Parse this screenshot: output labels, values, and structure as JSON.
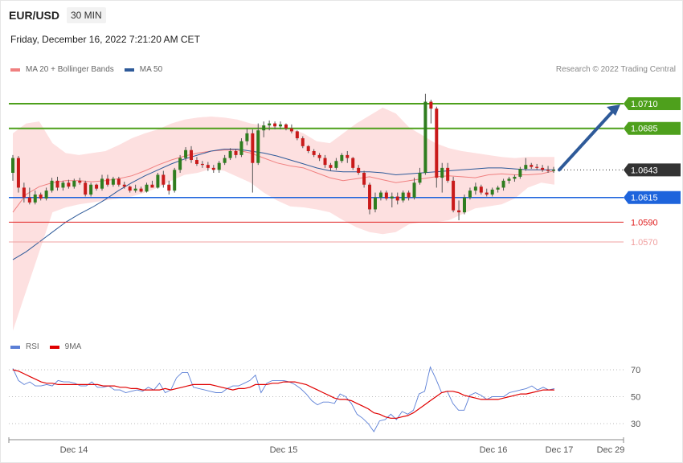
{
  "header": {
    "pair": "EUR/USD",
    "timeframe": "30 MIN",
    "datetime": "Friday, December 16, 2022 7:21:20 AM CET",
    "credit": "Research © 2022 Trading Central"
  },
  "legends": {
    "main": [
      {
        "label": "MA 20 + Bollinger Bands",
        "color": "#f08080"
      },
      {
        "label": "MA 50",
        "color": "#2e5a99"
      }
    ],
    "rsi": [
      {
        "label": "RSI",
        "color": "#5b7fd6"
      },
      {
        "label": "9MA",
        "color": "#e00000"
      }
    ]
  },
  "chart_data": [
    {
      "type": "candlestick",
      "title": "EUR/USD",
      "x_ticks": [
        "Dec 14",
        "Dec 15",
        "Dec 16",
        "Dec 17",
        "Dec 29"
      ],
      "price_levels": [
        {
          "value": 1.071,
          "label": "1.0710",
          "kind": "resistance",
          "color": "#4ea01c"
        },
        {
          "value": 1.0685,
          "label": "1.0685",
          "kind": "resistance",
          "color": "#4ea01c"
        },
        {
          "value": 1.0643,
          "label": "1.0643",
          "kind": "current",
          "color": "#333333"
        },
        {
          "value": 1.0615,
          "label": "1.0615",
          "kind": "pivot",
          "color": "#1e64dc"
        },
        {
          "value": 1.059,
          "label": "1.0590",
          "kind": "support",
          "color": "#e02020"
        },
        {
          "value": 1.057,
          "label": "1.0570",
          "kind": "support",
          "color": "#f0a0a0"
        }
      ],
      "projection": {
        "from": 1.0643,
        "to": 1.071,
        "direction": "up"
      },
      "candles_ohlc": [
        [
          1.064,
          1.0658,
          1.0632,
          1.0655
        ],
        [
          1.0655,
          1.0657,
          1.062,
          1.0625
        ],
        [
          1.0625,
          1.063,
          1.061,
          1.0615
        ],
        [
          1.0615,
          1.0625,
          1.0608,
          1.061
        ],
        [
          1.061,
          1.0622,
          1.0608,
          1.0618
        ],
        [
          1.0618,
          1.062,
          1.0612,
          1.0614
        ],
        [
          1.0614,
          1.0625,
          1.0612,
          1.0622
        ],
        [
          1.0622,
          1.0635,
          1.062,
          1.0632
        ],
        [
          1.0632,
          1.0636,
          1.0622,
          1.0625
        ],
        [
          1.0625,
          1.0632,
          1.0622,
          1.063
        ],
        [
          1.063,
          1.0633,
          1.0624,
          1.0626
        ],
        [
          1.0626,
          1.0634,
          1.0624,
          1.0632
        ],
        [
          1.0632,
          1.0635,
          1.0628,
          1.063
        ],
        [
          1.063,
          1.0632,
          1.0616,
          1.0618
        ],
        [
          1.0618,
          1.063,
          1.0616,
          1.0628
        ],
        [
          1.0628,
          1.0629,
          1.0622,
          1.0624
        ],
        [
          1.0624,
          1.0638,
          1.0622,
          1.0634
        ],
        [
          1.0634,
          1.0638,
          1.0626,
          1.0628
        ],
        [
          1.0628,
          1.0636,
          1.0626,
          1.0634
        ],
        [
          1.0634,
          1.0636,
          1.0626,
          1.0628
        ],
        [
          1.0628,
          1.0631,
          1.0624,
          1.0626
        ],
        [
          1.0626,
          1.0627,
          1.062,
          1.0622
        ],
        [
          1.0622,
          1.0628,
          1.062,
          1.0624
        ],
        [
          1.0624,
          1.0626,
          1.062,
          1.0621
        ],
        [
          1.0621,
          1.063,
          1.062,
          1.0628
        ],
        [
          1.0628,
          1.0632,
          1.0626,
          1.0625
        ],
        [
          1.0625,
          1.064,
          1.0624,
          1.0638
        ],
        [
          1.0638,
          1.0642,
          1.0625,
          1.0628
        ],
        [
          1.0628,
          1.0632,
          1.0618,
          1.0622
        ],
        [
          1.0622,
          1.0645,
          1.062,
          1.0643
        ],
        [
          1.0643,
          1.0658,
          1.064,
          1.0655
        ],
        [
          1.0655,
          1.0666,
          1.0652,
          1.0663
        ],
        [
          1.0663,
          1.0667,
          1.065,
          1.0653
        ],
        [
          1.0653,
          1.0656,
          1.0647,
          1.0649
        ],
        [
          1.0649,
          1.0652,
          1.0645,
          1.0648
        ],
        [
          1.0648,
          1.0651,
          1.0642,
          1.0645
        ],
        [
          1.0645,
          1.0648,
          1.064,
          1.0643
        ],
        [
          1.0643,
          1.0652,
          1.064,
          1.065
        ],
        [
          1.065,
          1.0658,
          1.0648,
          1.0655
        ],
        [
          1.0655,
          1.0665,
          1.0653,
          1.0662
        ],
        [
          1.0662,
          1.0664,
          1.0655,
          1.0658
        ],
        [
          1.0658,
          1.0675,
          1.0656,
          1.0672
        ],
        [
          1.0672,
          1.0685,
          1.0668,
          1.068
        ],
        [
          1.068,
          1.0684,
          1.062,
          1.065
        ],
        [
          1.065,
          1.069,
          1.0648,
          1.0683
        ],
        [
          1.0683,
          1.0692,
          1.0676,
          1.0688
        ],
        [
          1.0688,
          1.0693,
          1.0683,
          1.069
        ],
        [
          1.069,
          1.0692,
          1.0684,
          1.0687
        ],
        [
          1.0687,
          1.0692,
          1.0684,
          1.0689
        ],
        [
          1.0689,
          1.069,
          1.0683,
          1.0685
        ],
        [
          1.0685,
          1.0689,
          1.068,
          1.0682
        ],
        [
          1.0682,
          1.0683,
          1.0673,
          1.0675
        ],
        [
          1.0675,
          1.0677,
          1.0665,
          1.0667
        ],
        [
          1.0667,
          1.0668,
          1.066,
          1.0662
        ],
        [
          1.0662,
          1.0664,
          1.0656,
          1.0658
        ],
        [
          1.0658,
          1.066,
          1.0652,
          1.0655
        ],
        [
          1.0655,
          1.0658,
          1.0645,
          1.0648
        ],
        [
          1.0648,
          1.065,
          1.0642,
          1.0645
        ],
        [
          1.0645,
          1.0655,
          1.0643,
          1.0652
        ],
        [
          1.0652,
          1.066,
          1.065,
          1.0658
        ],
        [
          1.0658,
          1.0662,
          1.065,
          1.0655
        ],
        [
          1.0655,
          1.0656,
          1.0643,
          1.0645
        ],
        [
          1.0645,
          1.0648,
          1.0638,
          1.064
        ],
        [
          1.064,
          1.0642,
          1.0625,
          1.0628
        ],
        [
          1.0628,
          1.063,
          1.0598,
          1.0603
        ],
        [
          1.0603,
          1.062,
          1.06,
          1.0615
        ],
        [
          1.0615,
          1.0622,
          1.0612,
          1.062
        ],
        [
          1.062,
          1.0622,
          1.0612,
          1.0614
        ],
        [
          1.0614,
          1.062,
          1.0605,
          1.0616
        ],
        [
          1.0616,
          1.062,
          1.0608,
          1.0612
        ],
        [
          1.0612,
          1.0622,
          1.061,
          1.062
        ],
        [
          1.062,
          1.0622,
          1.0612,
          1.0615
        ],
        [
          1.0615,
          1.0635,
          1.0613,
          1.063
        ],
        [
          1.063,
          1.0645,
          1.0628,
          1.064
        ],
        [
          1.064,
          1.072,
          1.0638,
          1.0712
        ],
        [
          1.0712,
          1.0714,
          1.069,
          1.0705
        ],
        [
          1.0705,
          1.0707,
          1.0625,
          1.0635
        ],
        [
          1.0635,
          1.065,
          1.062,
          1.0645
        ],
        [
          1.0645,
          1.065,
          1.063,
          1.0632
        ],
        [
          1.0632,
          1.0636,
          1.06,
          1.0602
        ],
        [
          1.0602,
          1.0612,
          1.0592,
          1.06
        ],
        [
          1.06,
          1.0618,
          1.0598,
          1.0615
        ],
        [
          1.0615,
          1.0625,
          1.0613,
          1.0622
        ],
        [
          1.0622,
          1.063,
          1.0618,
          1.0626
        ],
        [
          1.0626,
          1.0628,
          1.0618,
          1.062
        ],
        [
          1.062,
          1.0624,
          1.0616,
          1.0618
        ],
        [
          1.0618,
          1.0625,
          1.0616,
          1.0623
        ],
        [
          1.0623,
          1.0627,
          1.062,
          1.0625
        ],
        [
          1.0625,
          1.0634,
          1.0622,
          1.0632
        ],
        [
          1.0632,
          1.0636,
          1.0629,
          1.0634
        ],
        [
          1.0634,
          1.0638,
          1.0631,
          1.0636
        ],
        [
          1.0636,
          1.0646,
          1.0634,
          1.0644
        ],
        [
          1.0644,
          1.0655,
          1.0642,
          1.0648
        ],
        [
          1.0648,
          1.065,
          1.0644,
          1.0646
        ],
        [
          1.0646,
          1.0649,
          1.0643,
          1.0645
        ],
        [
          1.0645,
          1.0648,
          1.0641,
          1.0643
        ],
        [
          1.0643,
          1.0647,
          1.064,
          1.0642
        ],
        [
          1.0642,
          1.0646,
          1.064,
          1.0643
        ]
      ],
      "ma20": [
        1.06,
        1.0618,
        1.0626,
        1.063,
        1.0632,
        1.0632,
        1.0631,
        1.0632,
        1.0634,
        1.0637,
        1.0642,
        1.0648,
        1.0653,
        1.0657,
        1.066,
        1.0662,
        1.0663,
        1.0663,
        1.066,
        1.0655,
        1.065,
        1.0647,
        1.0645,
        1.064,
        1.0635,
        1.0632,
        1.0634,
        1.0636,
        1.0633,
        1.063,
        1.0632,
        1.0634,
        1.0636,
        1.0637,
        1.0636,
        1.0635,
        1.0638,
        1.0639,
        1.0638,
        1.0638,
        1.0639,
        1.0642
      ],
      "ma50": [
        1.0552,
        1.056,
        1.057,
        1.058,
        1.059,
        1.0598,
        1.0605,
        1.0613,
        1.0622,
        1.063,
        1.0637,
        1.0643,
        1.0649,
        1.0654,
        1.0658,
        1.0662,
        1.0664,
        1.0664,
        1.0662,
        1.066,
        1.0657,
        1.0653,
        1.0649,
        1.0645,
        1.0642,
        1.0641,
        1.0641,
        1.0641,
        1.064,
        1.0638,
        1.0639,
        1.064,
        1.0641,
        1.0642,
        1.0643,
        1.0644,
        1.0645,
        1.0645,
        1.0644,
        1.0643,
        1.0643,
        1.0643
      ],
      "bb_upper": [
        1.068,
        1.069,
        1.0692,
        1.067,
        1.066,
        1.0658,
        1.066,
        1.0662,
        1.0668,
        1.0675,
        1.068,
        1.0684,
        1.069,
        1.0694,
        1.0696,
        1.0697,
        1.0696,
        1.0694,
        1.069,
        1.0688,
        1.0686,
        1.0685,
        1.068,
        1.0672,
        1.067,
        1.068,
        1.069,
        1.0698,
        1.0706,
        1.07,
        1.0686,
        1.0678,
        1.067,
        1.0665,
        1.0662,
        1.066,
        1.0658,
        1.0656,
        1.0655,
        1.0656,
        1.0656,
        1.0656
      ],
      "bb_lower": [
        1.048,
        1.052,
        1.056,
        1.06,
        1.0605,
        1.0608,
        1.061,
        1.0612,
        1.0614,
        1.0616,
        1.062,
        1.0625,
        1.0632,
        1.0638,
        1.064,
        1.0644,
        1.0642,
        1.0636,
        1.063,
        1.062,
        1.0612,
        1.0606,
        1.0605,
        1.0603,
        1.06,
        1.0592,
        1.0585,
        1.058,
        1.0578,
        1.058,
        1.0588,
        1.059,
        1.059,
        1.0592,
        1.0598,
        1.0604,
        1.0606,
        1.0608,
        1.0614,
        1.0625,
        1.063,
        1.0628
      ]
    },
    {
      "type": "line",
      "title": "RSI",
      "y_ticks": [
        70,
        50,
        30
      ],
      "ylim": [
        20,
        80
      ],
      "series": [
        {
          "name": "RSI",
          "color": "#5b7fd6",
          "values": [
            71,
            62,
            59,
            61,
            58,
            58,
            59,
            58,
            62,
            61,
            61,
            60,
            58,
            58,
            61,
            57,
            57,
            58,
            55,
            55,
            53,
            54,
            55,
            54,
            57,
            55,
            60,
            53,
            55,
            64,
            68,
            68,
            57,
            56,
            55,
            54,
            53,
            53,
            56,
            58,
            58,
            60,
            62,
            66,
            53,
            60,
            62,
            62,
            62,
            61,
            59,
            56,
            52,
            47,
            44,
            46,
            46,
            45,
            52,
            50,
            45,
            37,
            34,
            30,
            24,
            32,
            33,
            37,
            33,
            39,
            37,
            40,
            52,
            54,
            72,
            63,
            53,
            54,
            45,
            40,
            40,
            51,
            53,
            51,
            48,
            50,
            50,
            50,
            53,
            54,
            55,
            56,
            58,
            55,
            57,
            55,
            56
          ]
        },
        {
          "name": "9MA",
          "color": "#e00000",
          "values": [
            70,
            69,
            67,
            65,
            63,
            61,
            60,
            60,
            59,
            59,
            59,
            59,
            59,
            59,
            59,
            59,
            58,
            58,
            58,
            57,
            57,
            56,
            56,
            55,
            55,
            55,
            55,
            56,
            55,
            56,
            57,
            58,
            59,
            59,
            59,
            59,
            58,
            57,
            56,
            55,
            56,
            56,
            57,
            59,
            59,
            59,
            60,
            60,
            61,
            61,
            61,
            60,
            59,
            57,
            55,
            53,
            51,
            49,
            48,
            48,
            47,
            45,
            43,
            41,
            38,
            37,
            35,
            34,
            34,
            35,
            36,
            38,
            41,
            44,
            47,
            50,
            53,
            54,
            54,
            53,
            51,
            50,
            49,
            48,
            48,
            48,
            48,
            49,
            50,
            51,
            52,
            52,
            53,
            54,
            55,
            55,
            55
          ]
        }
      ]
    }
  ]
}
